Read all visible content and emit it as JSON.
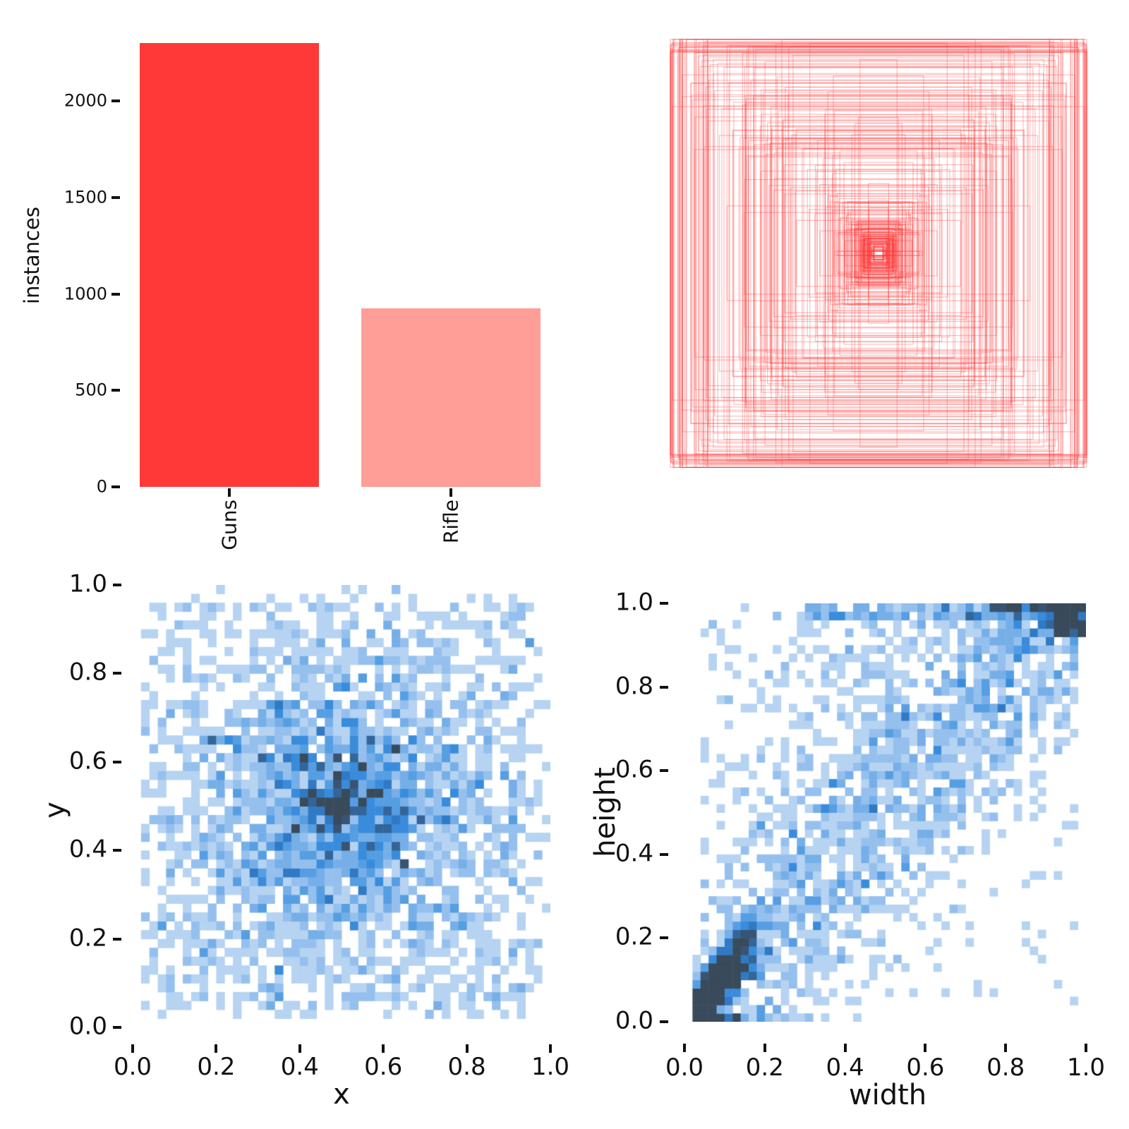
{
  "figure": {
    "background": "#ffffff",
    "text_color": "#111111"
  },
  "chart_data": [
    {
      "id": "instances-per-class",
      "type": "bar",
      "categories": [
        "Guns",
        "Rifle"
      ],
      "values": [
        2300,
        925
      ],
      "bar_colors": [
        "#ff3838",
        "#ff9d97"
      ],
      "ylabel": "instances",
      "yticks": [
        0,
        500,
        1000,
        1500,
        2000
      ],
      "ylim": [
        0,
        2450
      ],
      "grid": "off",
      "legend": "none"
    },
    {
      "id": "bounding-boxes-overlay",
      "type": "boxes",
      "description": "overlay of ~300 bounding-box outlines, all drawn centered at (0.5, 0.5)",
      "box_count": 300,
      "center": [
        0.5,
        0.5
      ],
      "line_color": "#ff3838",
      "line_alpha": 0.3
    },
    {
      "id": "xy-position-histogram",
      "type": "heatmap",
      "xlabel": "x",
      "ylabel": "y",
      "bins": 50,
      "xlim": [
        0,
        1
      ],
      "ylim": [
        0,
        1
      ],
      "xticks": [
        "0.0",
        "0.2",
        "0.4",
        "0.6",
        "0.8",
        "1.0"
      ],
      "yticks": [
        "0.0",
        "0.2",
        "0.4",
        "0.6",
        "0.8",
        "1.0"
      ],
      "grid": "off",
      "density_summary": "sparse uniform sprinkle over the unit square plus a strong gaussian concentration at (0.5, 0.5) with a small dark cross-shaped peak exactly at the centre"
    },
    {
      "id": "width-height-histogram",
      "type": "heatmap",
      "xlabel": "width",
      "ylabel": "height",
      "bins": 50,
      "xlim": [
        0,
        1
      ],
      "ylim": [
        0,
        1
      ],
      "xticks": [
        "0.0",
        "0.2",
        "0.4",
        "0.6",
        "0.8",
        "1.0"
      ],
      "yticks": [
        "0.0",
        "0.2",
        "0.4",
        "0.6",
        "0.8",
        "1.0"
      ],
      "grid": "off",
      "density_summary": "diagonal band height ~ width, very dense dark cluster of small boxes near (0.05, 0.05), dark cluster of near-full-image boxes at (1.0, 1.0), strip along height = 1.0"
    }
  ],
  "colormap": {
    "cmax": 9,
    "stops": [
      [
        0.0,
        "#ffffff"
      ],
      [
        0.1,
        "#c6dcf5"
      ],
      [
        0.2,
        "#a9cbf0"
      ],
      [
        0.33,
        "#88b8ec"
      ],
      [
        0.47,
        "#5fa3e4"
      ],
      [
        0.6,
        "#3a8ddc"
      ],
      [
        0.72,
        "#2f77c2"
      ],
      [
        0.82,
        "#356292"
      ],
      [
        0.92,
        "#3a526c"
      ],
      [
        1.0,
        "#394a5a"
      ]
    ]
  },
  "samples": {
    "seed": 42,
    "count": 3225,
    "xy_components": [
      {
        "type": "gauss2d",
        "weight": 0.555,
        "mx": 0.5,
        "my": 0.5,
        "sx": 0.17,
        "sy": 0.17,
        "clip": [
          0.02,
          0.98
        ]
      },
      {
        "type": "uniform2d",
        "weight": 0.38,
        "min": 0.03,
        "max": 0.97
      },
      {
        "type": "gauss2d",
        "weight": 0.0225,
        "mx": 0.5,
        "my": 0.5,
        "sx": 0.011,
        "sy": 0.05,
        "clip": [
          0.02,
          0.98
        ]
      },
      {
        "type": "gauss2d",
        "weight": 0.0225,
        "mx": 0.5,
        "my": 0.5,
        "sx": 0.05,
        "sy": 0.011,
        "clip": [
          0.02,
          0.98
        ]
      },
      {
        "type": "gauss2d",
        "weight": 0.02,
        "mx": 0.5,
        "my": 0.5,
        "sx": 0.008,
        "sy": 0.008,
        "clip": [
          0.02,
          0.98
        ]
      }
    ],
    "wh_components": [
      {
        "type": "small_cluster",
        "weight": 0.3,
        "base": 0.02,
        "spread": 0.075,
        "aspect_min": 0.7,
        "aspect_max": 1.5,
        "noise": 0.02
      },
      {
        "type": "diagonal",
        "weight": 0.42,
        "min": 0.02,
        "max": 0.98,
        "sigma": 0.16
      },
      {
        "type": "upper_fill",
        "weight": 0.14,
        "wmin": 0.05,
        "wmax": 0.95
      },
      {
        "type": "corner",
        "weight": 0.05,
        "min": 0.92
      },
      {
        "type": "uniform2d",
        "weight": 0.05,
        "min": 0.05,
        "max": 0.98
      },
      {
        "type": "top_edge",
        "weight": 0.04,
        "wmin": 0.3,
        "hmin": 0.96
      }
    ]
  }
}
